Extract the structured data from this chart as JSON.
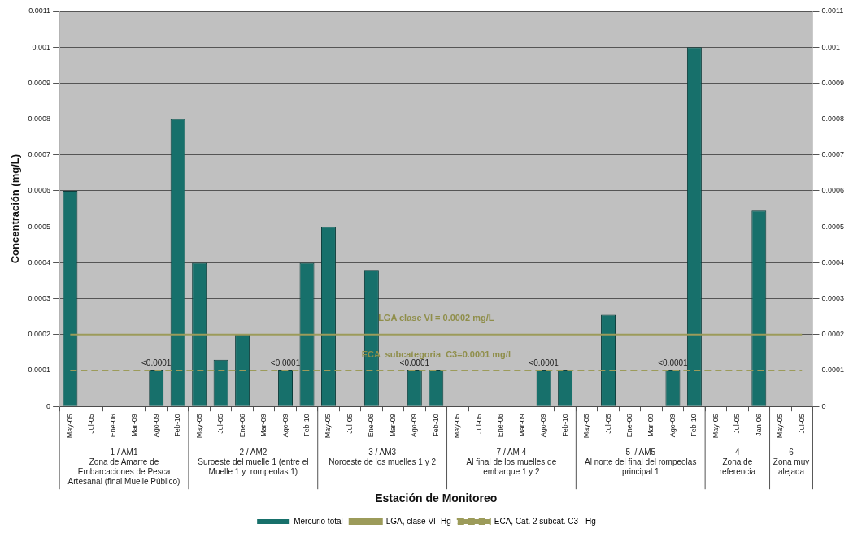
{
  "chart_data": {
    "type": "bar",
    "xlabel": "Estación de Monitoreo",
    "ylabel": "Concentración (mg/L)",
    "categories": [
      "May-05",
      "Jul-05",
      "Ene-06",
      "Mar-09",
      "Ago-09",
      "Feb-10",
      "May-05",
      "Jul-05",
      "Ene-06",
      "Mar-09",
      "Ago-09",
      "Feb-10",
      "May-05",
      "Jul-05",
      "Ene-06",
      "Mar-09",
      "Ago-09",
      "Feb-10",
      "May-05",
      "Jul-05",
      "Ene-06",
      "Mar-09",
      "Ago-09",
      "Feb-10",
      "May-05",
      "Jul-05",
      "Ene-06",
      "Mar-09",
      "Ago-09",
      "Feb-10",
      "May-05",
      "Jul-05",
      "Jan-06",
      "May-05",
      "Jul-05"
    ],
    "series": [
      {
        "name": "Mercurio total",
        "color": "#17706b",
        "values": [
          0.0006,
          null,
          null,
          null,
          0.0001,
          0.0008,
          0.0004,
          0.00013,
          0.0002,
          null,
          0.0001,
          0.0004,
          0.0005,
          null,
          0.00038,
          null,
          0.0001,
          0.0001,
          null,
          null,
          null,
          null,
          0.0001,
          0.0001,
          null,
          0.000255,
          null,
          null,
          0.0001,
          0.001,
          null,
          null,
          0.000545,
          null,
          null
        ],
        "value_labels": [
          null,
          null,
          null,
          null,
          "<0.0001",
          null,
          null,
          null,
          null,
          null,
          "<0.0001",
          null,
          null,
          null,
          null,
          null,
          "<0.0001",
          null,
          null,
          null,
          null,
          null,
          "<0.0001",
          null,
          null,
          null,
          null,
          null,
          "<0.0001",
          null,
          null,
          null,
          null,
          null,
          null
        ]
      },
      {
        "name": "LGA, clase VI -Hg",
        "type": "line",
        "color": "#9c9b5a",
        "line_style": "solid",
        "values": [
          0.0002,
          0.0002,
          0.0002,
          0.0002,
          0.0002,
          0.0002,
          0.0002,
          0.0002,
          0.0002,
          0.0002,
          0.0002,
          0.0002,
          0.0002,
          0.0002,
          0.0002,
          0.0002,
          0.0002,
          0.0002,
          0.0002,
          0.0002,
          0.0002,
          0.0002,
          0.0002,
          0.0002,
          0.0002,
          0.0002,
          0.0002,
          0.0002,
          0.0002,
          0.0002,
          0.0002,
          0.0002,
          0.0002,
          0.0002,
          0.0002
        ]
      },
      {
        "name": "ECA, Cat. 2 subcat. C3 - Hg",
        "type": "line",
        "color": "#9c9b5a",
        "line_style": "dashed",
        "values": [
          0.0001,
          0.0001,
          0.0001,
          0.0001,
          0.0001,
          0.0001,
          0.0001,
          0.0001,
          0.0001,
          0.0001,
          0.0001,
          0.0001,
          0.0001,
          0.0001,
          0.0001,
          0.0001,
          0.0001,
          0.0001,
          0.0001,
          0.0001,
          0.0001,
          0.0001,
          0.0001,
          0.0001,
          0.0001,
          0.0001,
          0.0001,
          0.0001,
          0.0001,
          0.0001,
          0.0001,
          0.0001,
          0.0001,
          0.0001,
          0.0001
        ]
      }
    ],
    "annotations": [
      "1 / AM1\nZona de Amarre de\nEmbarcaciones de Pesca\nArtesanal (final Muelle Público)",
      "2 / AM2\nSuroeste del muelle 1 (entre el\nMuelle 1 y  rompeolas 1)",
      "3 / AM3\nNoroeste de los muelles 1 y 2",
      "7 / AM 4\nAl final de los muelles de\nembarque 1 y 2",
      "5  / AM5\nAl norte del final del rompeolas\nprincipal 1",
      "4\nZona de\nreferencia",
      "6\nZona muy\nalejada",
      {
        "text": "LGA clase VI = 0.0002 mg/L",
        "y": 0.0002
      },
      {
        "text": "ECA  subcategoria  C3=0.0001 mg/l",
        "y": 0.0001
      }
    ],
    "ylim": [
      0,
      0.0011
    ],
    "yticks": [
      0,
      0.0001,
      0.0002,
      0.0003,
      0.0004,
      0.0005,
      0.0006,
      0.0007,
      0.0008,
      0.0009,
      0.001,
      0.0011
    ],
    "y2lim": [
      0,
      0.0011
    ],
    "y2ticks": [
      0,
      0.0001,
      0.0002,
      0.0003,
      0.0004,
      0.0005,
      0.0006,
      0.0007,
      0.0008,
      0.0009,
      0.001,
      0.0011
    ],
    "grid": "y",
    "legend": "bottom",
    "marker": "none"
  }
}
